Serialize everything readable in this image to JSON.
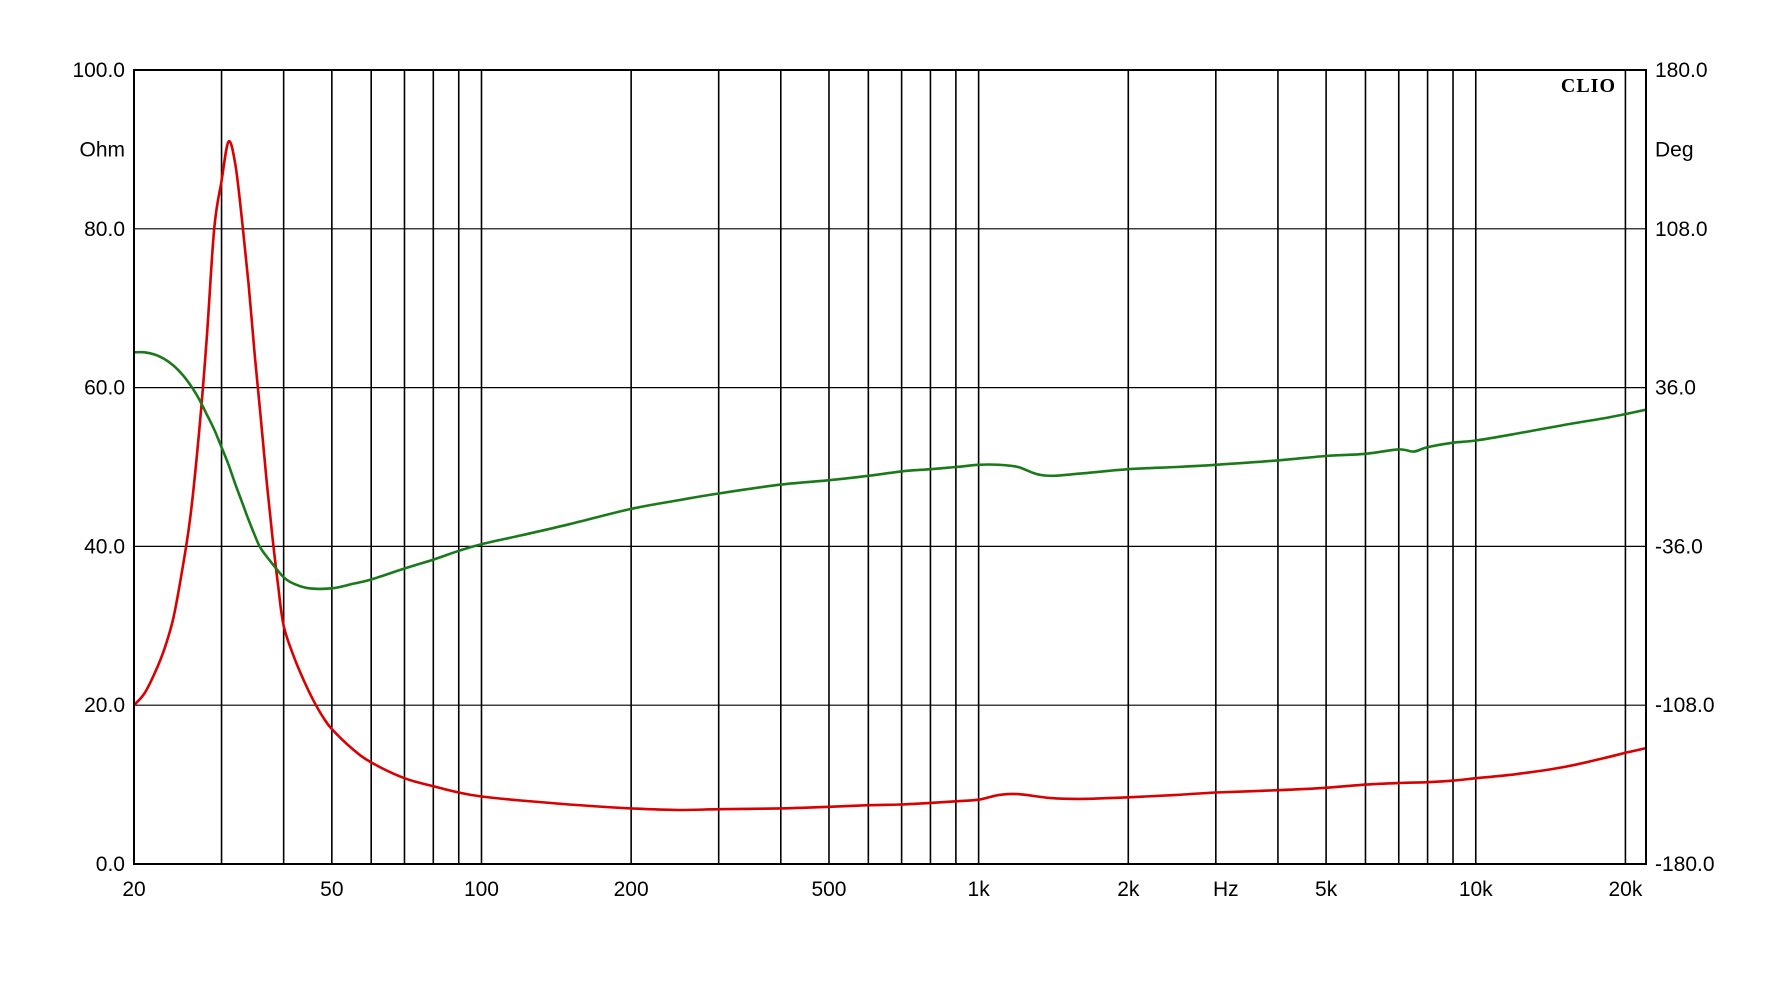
{
  "chart_data": {
    "type": "line",
    "x_scale": "log",
    "xlim": [
      20,
      22000
    ],
    "x_ticks": [
      {
        "value": 20,
        "label": "20"
      },
      {
        "value": 50,
        "label": "50"
      },
      {
        "value": 100,
        "label": "100"
      },
      {
        "value": 200,
        "label": "200"
      },
      {
        "value": 500,
        "label": "500"
      },
      {
        "value": 1000,
        "label": "1k"
      },
      {
        "value": 2000,
        "label": "2k"
      },
      {
        "value": 5000,
        "label": "5k"
      },
      {
        "value": 10000,
        "label": "10k"
      },
      {
        "value": 20000,
        "label": "20k"
      }
    ],
    "x_unit_label": "Hz",
    "x_unit_value": 3000,
    "x_gridlines": [
      20,
      30,
      40,
      50,
      60,
      70,
      80,
      90,
      100,
      200,
      300,
      400,
      500,
      600,
      700,
      800,
      900,
      1000,
      2000,
      3000,
      4000,
      5000,
      6000,
      7000,
      8000,
      9000,
      10000,
      20000
    ],
    "y_left": {
      "unit": "Ohm",
      "ylim": [
        0,
        100
      ],
      "ticks": [
        "0.0",
        "20.0",
        "40.0",
        "60.0",
        "80.0",
        "100.0"
      ]
    },
    "y_right": {
      "unit": "Deg",
      "ylim": [
        -180,
        180
      ],
      "ticks": [
        "-180.0",
        "-108.0",
        "-36.0",
        "36.0",
        "108.0",
        "180.0"
      ]
    },
    "grid": true,
    "watermark": "CLIO",
    "series": [
      {
        "axis": "left",
        "color": "#d80000",
        "points": [
          [
            20,
            20
          ],
          [
            21,
            21.5
          ],
          [
            22,
            24
          ],
          [
            23,
            27
          ],
          [
            24,
            31
          ],
          [
            25,
            37
          ],
          [
            26,
            44
          ],
          [
            27,
            54
          ],
          [
            28,
            66
          ],
          [
            29,
            80
          ],
          [
            30,
            86
          ],
          [
            31,
            91
          ],
          [
            32,
            88
          ],
          [
            33,
            81
          ],
          [
            34,
            73
          ],
          [
            35,
            64
          ],
          [
            36,
            56
          ],
          [
            37,
            48
          ],
          [
            38,
            41
          ],
          [
            39,
            35
          ],
          [
            40,
            30
          ],
          [
            42,
            26
          ],
          [
            44,
            23
          ],
          [
            46,
            20.5
          ],
          [
            48,
            18.5
          ],
          [
            50,
            17
          ],
          [
            55,
            14.5
          ],
          [
            60,
            12.8
          ],
          [
            70,
            10.8
          ],
          [
            80,
            9.8
          ],
          [
            90,
            9.0
          ],
          [
            100,
            8.5
          ],
          [
            120,
            8.0
          ],
          [
            150,
            7.5
          ],
          [
            200,
            7.0
          ],
          [
            250,
            6.8
          ],
          [
            300,
            6.9
          ],
          [
            400,
            7.0
          ],
          [
            500,
            7.2
          ],
          [
            600,
            7.4
          ],
          [
            700,
            7.5
          ],
          [
            800,
            7.7
          ],
          [
            900,
            7.9
          ],
          [
            1000,
            8.1
          ],
          [
            1100,
            8.7
          ],
          [
            1200,
            8.8
          ],
          [
            1400,
            8.3
          ],
          [
            1600,
            8.2
          ],
          [
            2000,
            8.4
          ],
          [
            2500,
            8.7
          ],
          [
            3000,
            9.0
          ],
          [
            4000,
            9.3
          ],
          [
            5000,
            9.6
          ],
          [
            6000,
            10.0
          ],
          [
            7000,
            10.2
          ],
          [
            8000,
            10.3
          ],
          [
            9000,
            10.5
          ],
          [
            10000,
            10.8
          ],
          [
            12000,
            11.3
          ],
          [
            15000,
            12.2
          ],
          [
            18000,
            13.3
          ],
          [
            20000,
            14.0
          ],
          [
            22000,
            14.6
          ]
        ]
      },
      {
        "axis": "right",
        "color": "#1a7a1a",
        "points": [
          [
            20,
            52
          ],
          [
            21,
            52
          ],
          [
            22,
            51
          ],
          [
            23,
            49
          ],
          [
            24,
            46
          ],
          [
            25,
            42
          ],
          [
            26,
            37
          ],
          [
            27,
            31
          ],
          [
            28,
            24
          ],
          [
            29,
            17
          ],
          [
            30,
            9
          ],
          [
            31,
            1
          ],
          [
            32,
            -8
          ],
          [
            33,
            -16
          ],
          [
            34,
            -24
          ],
          [
            35,
            -31
          ],
          [
            36,
            -37
          ],
          [
            38,
            -44
          ],
          [
            40,
            -50
          ],
          [
            42,
            -53
          ],
          [
            45,
            -55
          ],
          [
            50,
            -55
          ],
          [
            55,
            -53
          ],
          [
            60,
            -51
          ],
          [
            70,
            -46
          ],
          [
            80,
            -42
          ],
          [
            90,
            -38
          ],
          [
            100,
            -35
          ],
          [
            120,
            -31
          ],
          [
            150,
            -26
          ],
          [
            200,
            -19
          ],
          [
            250,
            -15
          ],
          [
            300,
            -12
          ],
          [
            400,
            -8
          ],
          [
            500,
            -6
          ],
          [
            600,
            -4
          ],
          [
            700,
            -2
          ],
          [
            800,
            -1
          ],
          [
            900,
            0
          ],
          [
            1000,
            1
          ],
          [
            1100,
            1
          ],
          [
            1200,
            0
          ],
          [
            1300,
            -3
          ],
          [
            1400,
            -4
          ],
          [
            1600,
            -3
          ],
          [
            2000,
            -1
          ],
          [
            2500,
            0
          ],
          [
            3000,
            1
          ],
          [
            4000,
            3
          ],
          [
            5000,
            5
          ],
          [
            6000,
            6
          ],
          [
            7000,
            8
          ],
          [
            7500,
            7
          ],
          [
            8000,
            9
          ],
          [
            9000,
            11
          ],
          [
            10000,
            12
          ],
          [
            12000,
            15
          ],
          [
            15000,
            19
          ],
          [
            18000,
            22
          ],
          [
            20000,
            24
          ],
          [
            22000,
            26
          ]
        ]
      }
    ]
  }
}
